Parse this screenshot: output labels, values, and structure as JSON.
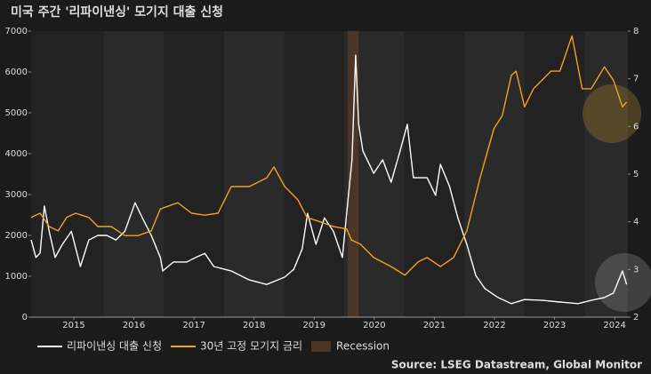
{
  "chart_data": {
    "type": "line",
    "title": "미국 주간 '리파이낸싱' 모기지 대출 신청",
    "source": "Source: LSEG Datastream, Global Monitor",
    "xlim": [
      2014.79,
      2024.72
    ],
    "xticks": [
      {
        "value": 2015.5,
        "label": "2015"
      },
      {
        "value": 2016.5,
        "label": "2016"
      },
      {
        "value": 2017.5,
        "label": "2017"
      },
      {
        "value": 2018.5,
        "label": "2018"
      },
      {
        "value": 2019.5,
        "label": "2019"
      },
      {
        "value": 2020.5,
        "label": "2020"
      },
      {
        "value": 2021.5,
        "label": "2021"
      },
      {
        "value": 2022.5,
        "label": "2022"
      },
      {
        "value": 2023.5,
        "label": "2023"
      },
      {
        "value": 2024.5,
        "label": "2024"
      }
    ],
    "ylim": [
      0,
      7000
    ],
    "yticks": [
      0,
      1000,
      2000,
      3000,
      4000,
      5000,
      6000,
      7000
    ],
    "y2lim": [
      2,
      8
    ],
    "y2ticks": [
      2,
      3,
      4,
      5,
      6,
      7,
      8
    ],
    "recession": {
      "name": "Recession",
      "start": 2020.06,
      "end": 2020.24,
      "color": "#4a3526"
    },
    "series": [
      {
        "name": "리파이낸싱 대출 신청",
        "color": "#ffffff",
        "axis": "y",
        "x": [
          2014.79,
          2014.87,
          2014.94,
          2015.01,
          2015.09,
          2015.19,
          2015.31,
          2015.46,
          2015.61,
          2015.75,
          2015.9,
          2016.05,
          2016.2,
          2016.35,
          2016.52,
          2016.64,
          2016.79,
          2016.94,
          2016.98,
          2017.16,
          2017.38,
          2017.53,
          2017.68,
          2017.83,
          2018.12,
          2018.27,
          2018.42,
          2018.71,
          2019.01,
          2019.16,
          2019.3,
          2019.39,
          2019.53,
          2019.67,
          2019.82,
          2019.97,
          2020.07,
          2020.13,
          2020.19,
          2020.24,
          2020.31,
          2020.49,
          2020.64,
          2020.78,
          2020.93,
          2021.05,
          2021.15,
          2021.38,
          2021.52,
          2021.6,
          2021.75,
          2021.89,
          2022.04,
          2022.19,
          2022.34,
          2022.56,
          2022.78,
          2023.0,
          2023.3,
          2023.59,
          2023.89,
          2024.11,
          2024.33,
          2024.48,
          2024.63,
          2024.7
        ],
        "values": [
          1890,
          1460,
          1570,
          2720,
          2100,
          1460,
          1780,
          2100,
          1240,
          1890,
          2000,
          2000,
          1890,
          2100,
          2800,
          2430,
          2000,
          1460,
          1130,
          1350,
          1350,
          1460,
          1560,
          1240,
          1130,
          1020,
          910,
          800,
          980,
          1170,
          1670,
          2540,
          1780,
          2430,
          2100,
          1460,
          2980,
          3850,
          6410,
          4720,
          4070,
          3520,
          3850,
          3300,
          4070,
          4720,
          3410,
          3410,
          2980,
          3740,
          3210,
          2430,
          1780,
          1020,
          700,
          480,
          330,
          430,
          410,
          370,
          330,
          410,
          480,
          590,
          1130,
          800
        ]
      },
      {
        "name": "30년 고정 모기지 금리",
        "color": "#f5a01a",
        "axis": "y2",
        "x": [
          2014.79,
          2014.94,
          2015.09,
          2015.24,
          2015.38,
          2015.53,
          2015.75,
          2015.9,
          2016.12,
          2016.35,
          2016.57,
          2016.79,
          2016.94,
          2017.23,
          2017.46,
          2017.68,
          2017.9,
          2018.12,
          2018.42,
          2018.71,
          2018.83,
          2019.01,
          2019.23,
          2019.38,
          2019.6,
          2019.82,
          2020.04,
          2020.12,
          2020.27,
          2020.49,
          2020.78,
          2021.01,
          2021.23,
          2021.38,
          2021.6,
          2021.82,
          2022.04,
          2022.26,
          2022.49,
          2022.63,
          2022.78,
          2022.86,
          2023.0,
          2023.15,
          2023.44,
          2023.59,
          2023.79,
          2023.96,
          2024.11,
          2024.33,
          2024.48,
          2024.63,
          2024.7
        ],
        "values": [
          4.09,
          4.18,
          3.9,
          3.81,
          4.09,
          4.18,
          4.09,
          3.9,
          3.9,
          3.71,
          3.71,
          3.81,
          4.27,
          4.4,
          4.18,
          4.14,
          4.18,
          4.74,
          4.74,
          4.92,
          5.15,
          4.74,
          4.46,
          4.09,
          4.0,
          3.9,
          3.85,
          3.62,
          3.53,
          3.25,
          3.06,
          2.88,
          3.16,
          3.25,
          3.06,
          3.25,
          3.81,
          4.92,
          5.95,
          6.23,
          7.07,
          7.16,
          6.41,
          6.79,
          7.16,
          7.16,
          7.9,
          6.79,
          6.79,
          7.25,
          6.97,
          6.41,
          6.51
        ]
      }
    ]
  }
}
